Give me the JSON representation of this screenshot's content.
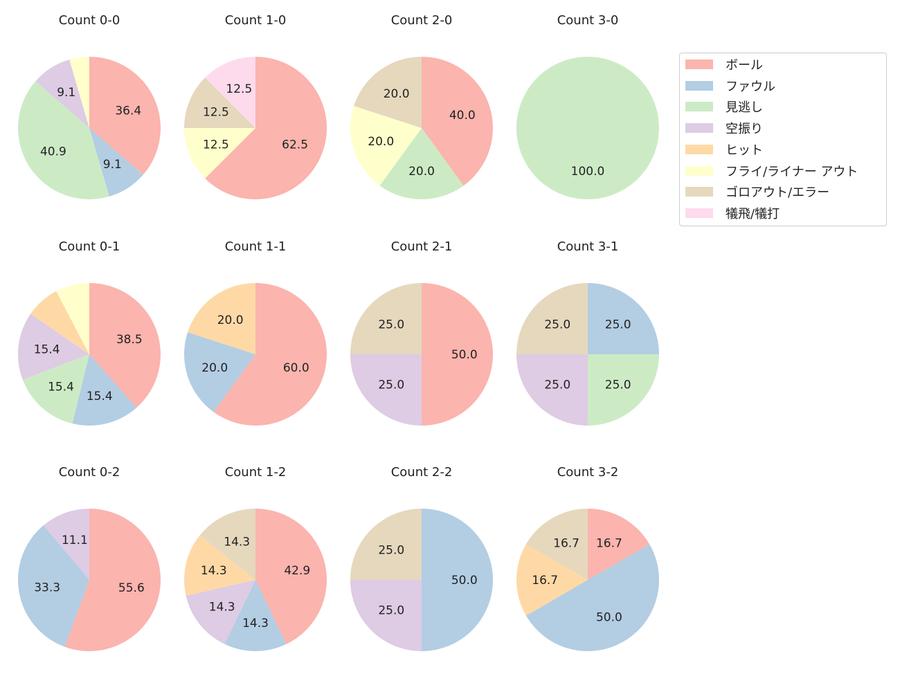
{
  "chart_data": [
    {
      "type": "pie",
      "title": "Count 0-0",
      "values": [
        36.4,
        9.1,
        40.9,
        9.1,
        0,
        4.5,
        0,
        0
      ]
    },
    {
      "type": "pie",
      "title": "Count 1-0",
      "values": [
        62.5,
        0,
        0,
        0,
        0,
        12.5,
        12.5,
        12.5
      ]
    },
    {
      "type": "pie",
      "title": "Count 2-0",
      "values": [
        40.0,
        0,
        20.0,
        0,
        0,
        20.0,
        20.0,
        0
      ]
    },
    {
      "type": "pie",
      "title": "Count 3-0",
      "values": [
        0,
        0,
        100.0,
        0,
        0,
        0,
        0,
        0
      ]
    },
    {
      "type": "pie",
      "title": "Count 0-1",
      "values": [
        38.5,
        15.4,
        15.4,
        15.4,
        7.7,
        7.7,
        0,
        0
      ]
    },
    {
      "type": "pie",
      "title": "Count 1-1",
      "values": [
        60.0,
        20.0,
        0,
        0,
        20.0,
        0,
        0,
        0
      ]
    },
    {
      "type": "pie",
      "title": "Count 2-1",
      "values": [
        50.0,
        0,
        0,
        25.0,
        0,
        0,
        25.0,
        0
      ]
    },
    {
      "type": "pie",
      "title": "Count 3-1",
      "values": [
        0,
        25.0,
        25.0,
        25.0,
        0,
        0,
        25.0,
        0
      ]
    },
    {
      "type": "pie",
      "title": "Count 0-2",
      "values": [
        55.6,
        33.3,
        0,
        11.1,
        0,
        0,
        0,
        0
      ]
    },
    {
      "type": "pie",
      "title": "Count 1-2",
      "values": [
        42.9,
        14.3,
        0,
        14.3,
        14.3,
        0,
        14.3,
        0
      ]
    },
    {
      "type": "pie",
      "title": "Count 2-2",
      "values": [
        0,
        50.0,
        0,
        25.0,
        0,
        0,
        25.0,
        0
      ]
    },
    {
      "type": "pie",
      "title": "Count 3-2",
      "values": [
        16.7,
        50.0,
        0,
        0,
        16.7,
        0,
        16.7,
        0
      ]
    }
  ],
  "legend": {
    "placement": "top-right",
    "labels": [
      "ボール",
      "ファウル",
      "見逃し",
      "空振り",
      "ヒット",
      "フライ/ライナー アウト",
      "ゴロアウト/エラー",
      "犠飛/犠打"
    ],
    "colors": [
      "#fbb4ae",
      "#b3cde3",
      "#ccebc5",
      "#decbe4",
      "#fed9a6",
      "#ffffcc",
      "#e5d8bd",
      "#fddaec"
    ]
  }
}
